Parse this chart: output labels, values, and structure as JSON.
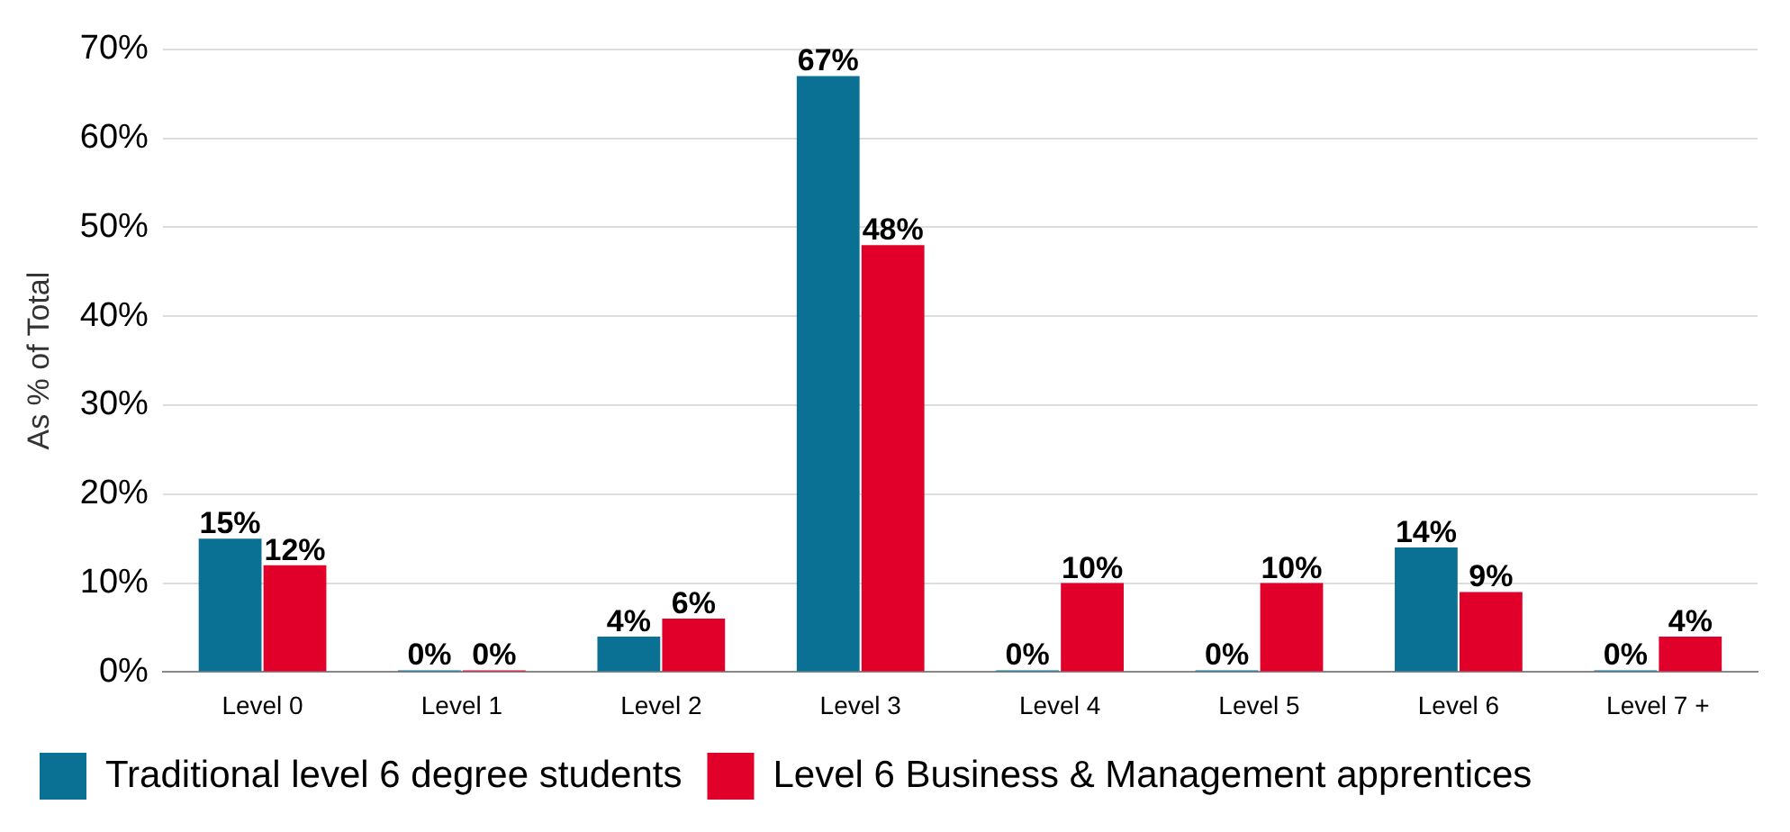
{
  "chart_data": {
    "type": "bar",
    "ylabel": "As % of Total",
    "categories": [
      "Level 0",
      "Level 1",
      "Level 2",
      "Level 3",
      "Level 4",
      "Level 5",
      "Level 6",
      "Level 7 +"
    ],
    "series": [
      {
        "name": "Traditional level 6 degree students",
        "color": "#0a7094",
        "values": [
          15,
          0,
          4,
          67,
          0,
          0,
          14,
          0
        ],
        "value_labels": [
          "15%",
          "0%",
          "4%",
          "67%",
          "0%",
          "0%",
          "14%",
          "0%"
        ]
      },
      {
        "name": "Level 6 Business & Management apprentices",
        "color": "#e0002a",
        "values": [
          12,
          0,
          6,
          48,
          10,
          10,
          9,
          4
        ],
        "value_labels": [
          "12%",
          "0%",
          "6%",
          "48%",
          "10%",
          "10%",
          "9%",
          "4%"
        ]
      }
    ],
    "ylim": [
      0,
      70
    ],
    "yticks": [
      {
        "value": 0,
        "label": "0%"
      },
      {
        "value": 10,
        "label": "10%"
      },
      {
        "value": 20,
        "label": "20%"
      },
      {
        "value": 30,
        "label": "30%"
      },
      {
        "value": 40,
        "label": "40%"
      },
      {
        "value": 50,
        "label": "50%"
      },
      {
        "value": 60,
        "label": "60%"
      },
      {
        "value": 70,
        "label": "70%"
      }
    ],
    "grid": "y",
    "legend": "bottom"
  }
}
